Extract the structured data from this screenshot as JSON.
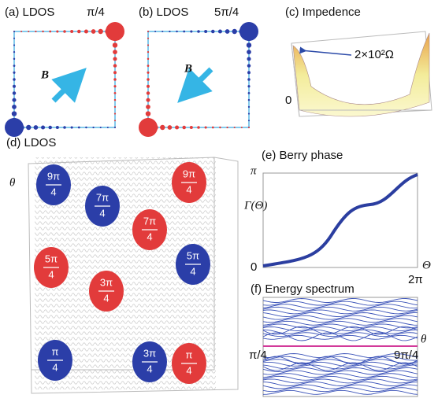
{
  "panel_a": {
    "title": "(a) LDOS",
    "angle": "π/4",
    "field": "B"
  },
  "panel_b": {
    "title": "(b) LDOS",
    "angle": "5π/4",
    "field": "B"
  },
  "panel_c": {
    "title": "(c) Impedence",
    "scale": "2×10²Ω",
    "zero": "0"
  },
  "panel_d": {
    "title": "(d) LDOS",
    "axis": "θ",
    "labels": [
      {
        "num": "9π",
        "den": "4"
      },
      {
        "num": "7π",
        "den": "4"
      },
      {
        "num": "9π",
        "den": "4"
      },
      {
        "num": "7π",
        "den": "4"
      },
      {
        "num": "5π",
        "den": "4"
      },
      {
        "num": "5π",
        "den": "4"
      },
      {
        "num": "3π",
        "den": "4"
      },
      {
        "num": "3π",
        "den": "4"
      },
      {
        "num": "π",
        "den": "4"
      },
      {
        "num": "π",
        "den": "4"
      }
    ]
  },
  "panel_e": {
    "title": "(e) Berry phase",
    "y_top": "π",
    "y_label": "Γ(Θ)",
    "origin": "0",
    "x_label": "Θ",
    "x_end": "2π"
  },
  "panel_f": {
    "title": "(f) Energy spectrum",
    "axis": "θ",
    "x_start": "π/4",
    "x_end": "9π/4"
  }
}
